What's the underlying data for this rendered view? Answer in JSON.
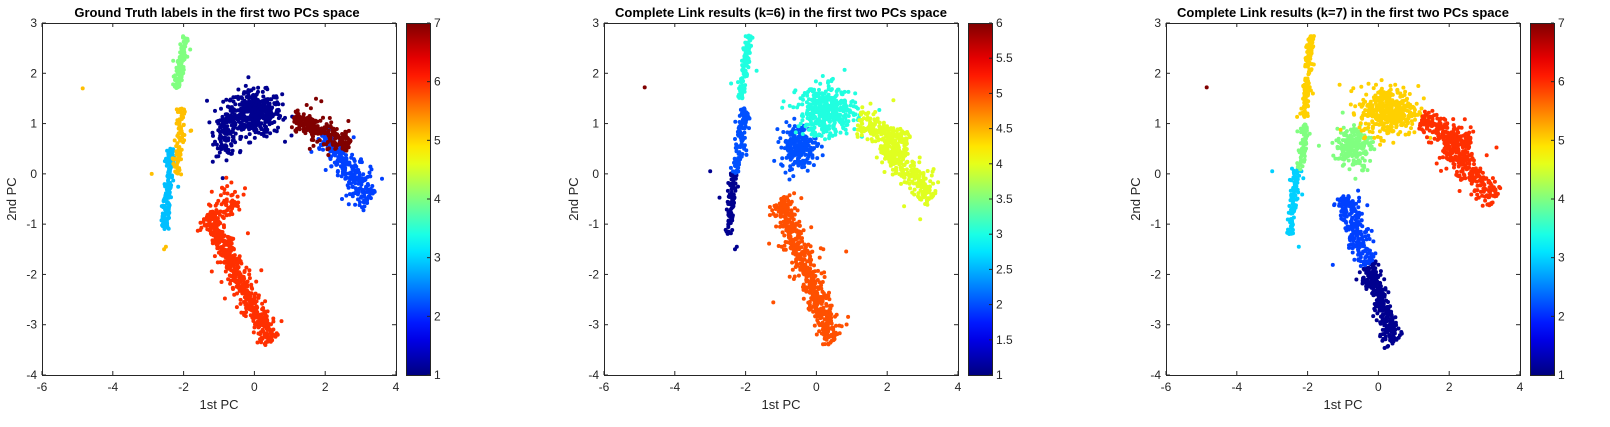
{
  "chart_data": [
    {
      "type": "scatter",
      "title": "Ground Truth labels in the first two PCs space",
      "xlabel": "1st PC",
      "ylabel": "2nd PC",
      "xlim": [
        -6,
        4
      ],
      "ylim": [
        -4,
        3
      ],
      "xticks": [
        "-6",
        "-4",
        "-2",
        "0",
        "2",
        "4"
      ],
      "yticks": [
        "-4",
        "-3",
        "-2",
        "-1",
        "0",
        "1",
        "2",
        "3"
      ],
      "grid": false,
      "colormap": "jet",
      "colorbar": {
        "min": 1,
        "max": 7,
        "ticks": [
          "1",
          "2",
          "3",
          "4",
          "5",
          "6",
          "7"
        ]
      },
      "clusters": [
        {
          "label": 1,
          "color": "#00008f",
          "shape": "ellipse",
          "center": [
            0.0,
            1.2
          ],
          "spread": [
            0.7,
            0.4
          ],
          "angle": 0,
          "count": 420
        },
        {
          "label": 1,
          "color": "#00008f",
          "shape": "ellipse",
          "center": [
            -0.8,
            0.8
          ],
          "spread": [
            0.3,
            0.4
          ],
          "angle": 0,
          "count": 120
        },
        {
          "label": 2,
          "color": "#0040ff",
          "shape": "segment",
          "from": [
            1.9,
            0.8
          ],
          "to": [
            3.3,
            -0.5
          ],
          "width": 0.15,
          "count": 260
        },
        {
          "label": 3,
          "color": "#00bfff",
          "shape": "segment",
          "from": [
            -2.35,
            0.5
          ],
          "to": [
            -2.55,
            -1.1
          ],
          "width": 0.06,
          "count": 160
        },
        {
          "label": 4,
          "color": "#80ff80",
          "shape": "segment",
          "from": [
            -1.95,
            2.75
          ],
          "to": [
            -2.2,
            1.7
          ],
          "width": 0.05,
          "count": 110
        },
        {
          "label": 5,
          "color": "#ffbf00",
          "shape": "segment",
          "from": [
            -2.05,
            1.3
          ],
          "to": [
            -2.2,
            0.0
          ],
          "width": 0.06,
          "count": 90
        },
        {
          "label": 5,
          "color": "#ffbf00",
          "shape": "points",
          "points": [
            [
              -4.85,
              1.7
            ],
            [
              -2.5,
              -1.45
            ],
            [
              -2.55,
              -1.5
            ],
            [
              -2.9,
              0.0
            ]
          ]
        },
        {
          "label": 6,
          "color": "#ff3000",
          "shape": "segment",
          "from": [
            -1.3,
            -0.8
          ],
          "to": [
            0.45,
            -3.35
          ],
          "width": 0.13,
          "count": 520
        },
        {
          "label": 6,
          "color": "#ff3000",
          "shape": "ellipse",
          "center": [
            -0.8,
            -0.6
          ],
          "spread": [
            0.4,
            0.35
          ],
          "angle": 0,
          "count": 60
        },
        {
          "label": 7,
          "color": "#800000",
          "shape": "segment",
          "from": [
            1.1,
            1.1
          ],
          "to": [
            2.7,
            0.55
          ],
          "width": 0.11,
          "count": 230
        }
      ]
    },
    {
      "type": "scatter",
      "title": "Complete Link results (k=6) in the first two PCs space",
      "xlabel": "1st PC",
      "ylabel": "2nd PC",
      "xlim": [
        -6,
        4
      ],
      "ylim": [
        -4,
        3
      ],
      "xticks": [
        "-6",
        "-4",
        "-2",
        "0",
        "2",
        "4"
      ],
      "yticks": [
        "-4",
        "-3",
        "-2",
        "-1",
        "0",
        "1",
        "2",
        "3"
      ],
      "grid": false,
      "colormap": "jet",
      "colorbar": {
        "min": 1,
        "max": 6,
        "ticks": [
          "1",
          "1.5",
          "2",
          "2.5",
          "3",
          "3.5",
          "4",
          "4.5",
          "5",
          "5.5",
          "6"
        ]
      },
      "clusters": [
        {
          "label": 1,
          "color": "#00008f",
          "shape": "segment",
          "from": [
            -2.3,
            0.0
          ],
          "to": [
            -2.5,
            -1.2
          ],
          "width": 0.06,
          "count": 90
        },
        {
          "label": 1,
          "color": "#00008f",
          "shape": "points",
          "points": [
            [
              -2.25,
              -1.45
            ],
            [
              -2.3,
              -1.5
            ],
            [
              -3.0,
              0.05
            ]
          ]
        },
        {
          "label": 2,
          "color": "#0050ff",
          "shape": "segment",
          "from": [
            -2.0,
            1.3
          ],
          "to": [
            -2.25,
            0.0
          ],
          "width": 0.07,
          "count": 110
        },
        {
          "label": 2,
          "color": "#0050ff",
          "shape": "ellipse",
          "center": [
            -0.5,
            0.55
          ],
          "spread": [
            0.45,
            0.4
          ],
          "angle": 0,
          "count": 220
        },
        {
          "label": 3,
          "color": "#20ffe0",
          "shape": "segment",
          "from": [
            -1.9,
            2.75
          ],
          "to": [
            -2.15,
            1.5
          ],
          "width": 0.05,
          "count": 110
        },
        {
          "label": 3,
          "color": "#20ffe0",
          "shape": "ellipse",
          "center": [
            0.3,
            1.25
          ],
          "spread": [
            0.75,
            0.45
          ],
          "angle": 0,
          "count": 400
        },
        {
          "label": 4,
          "color": "#e0ff20",
          "shape": "segment",
          "from": [
            1.2,
            1.05
          ],
          "to": [
            2.6,
            0.6
          ],
          "width": 0.12,
          "count": 200
        },
        {
          "label": 4,
          "color": "#e0ff20",
          "shape": "segment",
          "from": [
            1.9,
            0.6
          ],
          "to": [
            3.3,
            -0.5
          ],
          "width": 0.15,
          "count": 240
        },
        {
          "label": 5,
          "color": "#ff5000",
          "shape": "segment",
          "from": [
            -1.0,
            -0.5
          ],
          "to": [
            0.45,
            -3.35
          ],
          "width": 0.14,
          "count": 560
        },
        {
          "label": 6,
          "color": "#800000",
          "shape": "points",
          "points": [
            [
              -4.85,
              1.72
            ]
          ]
        }
      ]
    },
    {
      "type": "scatter",
      "title": "Complete Link results (k=7) in the first two PCs space",
      "xlabel": "1st PC",
      "ylabel": "2nd PC",
      "xlim": [
        -6,
        4
      ],
      "ylim": [
        -4,
        3
      ],
      "xticks": [
        "-6",
        "-4",
        "-2",
        "0",
        "2",
        "4"
      ],
      "yticks": [
        "-4",
        "-3",
        "-2",
        "-1",
        "0",
        "1",
        "2",
        "3"
      ],
      "grid": false,
      "colormap": "jet",
      "colorbar": {
        "min": 1,
        "max": 7,
        "ticks": [
          "1",
          "2",
          "3",
          "4",
          "5",
          "6",
          "7"
        ]
      },
      "clusters": [
        {
          "label": 1,
          "color": "#00008f",
          "shape": "segment",
          "from": [
            -0.3,
            -1.8
          ],
          "to": [
            0.45,
            -3.35
          ],
          "width": 0.12,
          "count": 300
        },
        {
          "label": 2,
          "color": "#0040ff",
          "shape": "segment",
          "from": [
            -1.0,
            -0.4
          ],
          "to": [
            -0.3,
            -1.8
          ],
          "width": 0.14,
          "count": 220
        },
        {
          "label": 3,
          "color": "#00d0ff",
          "shape": "segment",
          "from": [
            -2.3,
            0.1
          ],
          "to": [
            -2.5,
            -1.2
          ],
          "width": 0.06,
          "count": 100
        },
        {
          "label": 3,
          "color": "#00d0ff",
          "shape": "points",
          "points": [
            [
              -2.25,
              -1.45
            ],
            [
              -3.0,
              0.05
            ]
          ]
        },
        {
          "label": 4,
          "color": "#80ff80",
          "shape": "segment",
          "from": [
            -2.0,
            1.0
          ],
          "to": [
            -2.25,
            0.1
          ],
          "width": 0.06,
          "count": 70
        },
        {
          "label": 4,
          "color": "#80ff80",
          "shape": "ellipse",
          "center": [
            -0.7,
            0.55
          ],
          "spread": [
            0.45,
            0.4
          ],
          "angle": 0,
          "count": 200
        },
        {
          "label": 5,
          "color": "#ffd000",
          "shape": "segment",
          "from": [
            -1.9,
            2.75
          ],
          "to": [
            -2.1,
            1.1
          ],
          "width": 0.05,
          "count": 140
        },
        {
          "label": 5,
          "color": "#ffd000",
          "shape": "ellipse",
          "center": [
            0.3,
            1.25
          ],
          "spread": [
            0.75,
            0.45
          ],
          "angle": 0,
          "count": 400
        },
        {
          "label": 6,
          "color": "#ff3000",
          "shape": "segment",
          "from": [
            1.2,
            1.05
          ],
          "to": [
            2.6,
            0.6
          ],
          "width": 0.12,
          "count": 200
        },
        {
          "label": 6,
          "color": "#ff3000",
          "shape": "segment",
          "from": [
            1.9,
            0.6
          ],
          "to": [
            3.3,
            -0.5
          ],
          "width": 0.15,
          "count": 240
        },
        {
          "label": 7,
          "color": "#800000",
          "shape": "points",
          "points": [
            [
              -4.85,
              1.72
            ]
          ]
        }
      ]
    }
  ]
}
